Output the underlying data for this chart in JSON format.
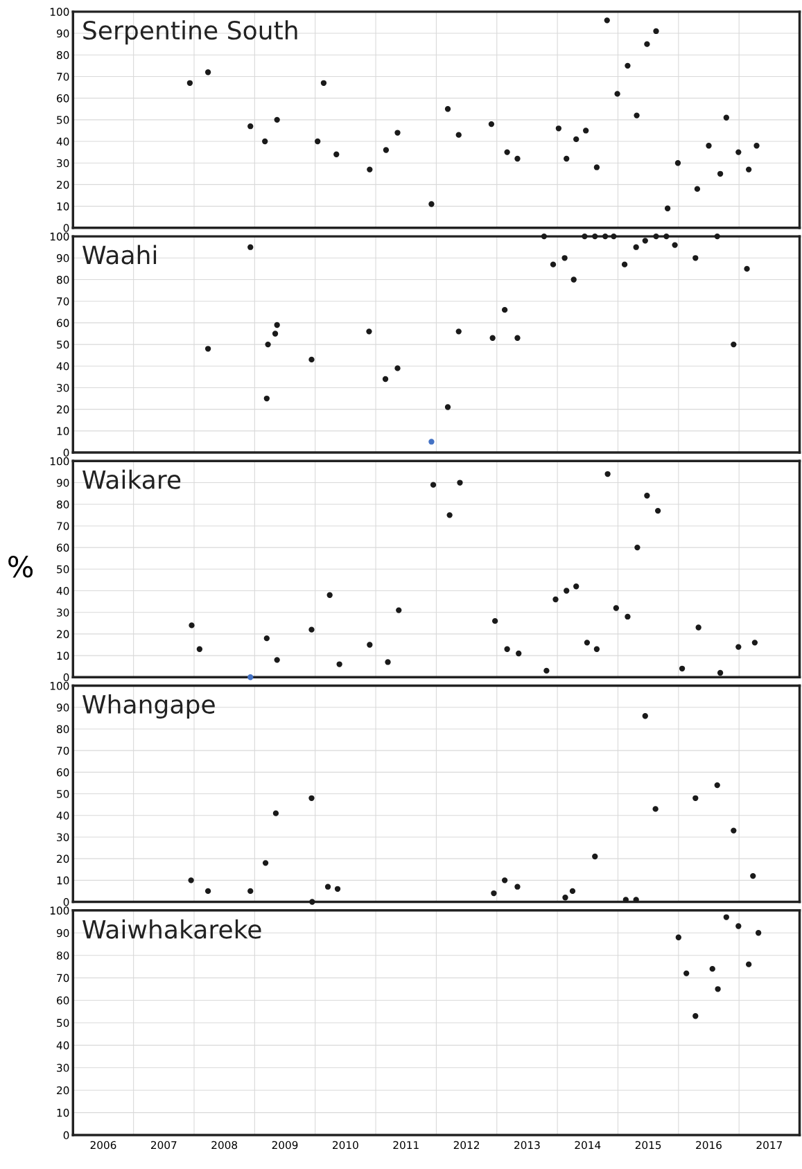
{
  "chart_data": [
    {
      "type": "scatter",
      "title": "Serpentine South",
      "marker": "circle",
      "grid": true,
      "tick_labels": "y",
      "xlim": [
        2006,
        2018
      ],
      "ylim": [
        0,
        100
      ],
      "yticks": [
        0,
        10,
        20,
        30,
        40,
        50,
        60,
        70,
        80,
        90,
        100
      ],
      "xticks": [
        {
          "value": 2007,
          "label": null
        },
        {
          "value": 2008,
          "label": null
        },
        {
          "value": 2009,
          "label": null
        },
        {
          "value": 2010,
          "label": null
        },
        {
          "value": 2011,
          "label": null
        },
        {
          "value": 2012,
          "label": null
        },
        {
          "value": 2013,
          "label": null
        },
        {
          "value": 2014,
          "label": null
        },
        {
          "value": 2015,
          "label": null
        },
        {
          "value": 2016,
          "label": null
        },
        {
          "value": 2017,
          "label": null
        }
      ],
      "x": [
        2007.93,
        2008.23,
        2008.93,
        2009.17,
        2009.37,
        2010.04,
        2010.14,
        2010.35,
        2010.9,
        2011.17,
        2011.36,
        2011.92,
        2012.19,
        2012.37,
        2012.91,
        2013.17,
        2013.34,
        2014.02,
        2014.15,
        2014.31,
        2014.47,
        2014.65,
        2014.82,
        2014.99,
        2015.16,
        2015.31,
        2015.48,
        2015.63,
        2015.82,
        2015.99,
        2016.31,
        2016.5,
        2016.69,
        2016.79,
        2016.99,
        2017.16,
        2017.29
      ],
      "values": [
        67,
        72,
        47,
        40,
        50,
        40,
        67,
        34,
        27,
        36,
        44,
        11,
        55,
        43,
        48,
        35,
        32,
        46,
        32,
        41,
        45,
        28,
        96,
        62,
        75,
        52,
        85,
        91,
        9,
        30,
        18,
        38,
        25,
        51,
        35,
        27,
        38
      ],
      "color": "#1a1a1a"
    },
    {
      "type": "scatter",
      "title": "Waahi",
      "marker": "circle",
      "grid": true,
      "tick_labels": "y",
      "xlim": [
        2006,
        2018
      ],
      "ylim": [
        0,
        100
      ],
      "yticks": [
        0,
        10,
        20,
        30,
        40,
        50,
        60,
        70,
        80,
        90,
        100
      ],
      "xticks": [
        {
          "value": 2007,
          "label": null
        },
        {
          "value": 2008,
          "label": null
        },
        {
          "value": 2009,
          "label": null
        },
        {
          "value": 2010,
          "label": null
        },
        {
          "value": 2011,
          "label": null
        },
        {
          "value": 2012,
          "label": null
        },
        {
          "value": 2013,
          "label": null
        },
        {
          "value": 2014,
          "label": null
        },
        {
          "value": 2015,
          "label": null
        },
        {
          "value": 2016,
          "label": null
        },
        {
          "value": 2017,
          "label": null
        }
      ],
      "x": [
        2008.23,
        2008.93,
        2009.2,
        2009.22,
        2009.34,
        2009.37,
        2009.94,
        2010.89,
        2011.16,
        2011.36,
        2011.92,
        2012.19,
        2012.37,
        2012.93,
        2013.13,
        2013.34,
        2013.78,
        2013.93,
        2014.12,
        2014.27,
        2014.45,
        2014.62,
        2014.79,
        2014.93,
        2015.11,
        2015.3,
        2015.45,
        2015.63,
        2015.8,
        2015.94,
        2016.28,
        2016.64,
        2016.91,
        2017.13
      ],
      "values": [
        48,
        95,
        25,
        50,
        55,
        59,
        43,
        56,
        34,
        39,
        5,
        21,
        56,
        53,
        66,
        53,
        100,
        87,
        90,
        80,
        100,
        100,
        100,
        100,
        87,
        95,
        98,
        100,
        100,
        96,
        90,
        100,
        50,
        85
      ],
      "colors": [
        "#1a1a1a",
        "#1a1a1a",
        "#1a1a1a",
        "#1a1a1a",
        "#1a1a1a",
        "#1a1a1a",
        "#1a1a1a",
        "#1a1a1a",
        "#1a1a1a",
        "#1a1a1a",
        "#4472c4",
        "#1a1a1a",
        "#1a1a1a",
        "#1a1a1a",
        "#1a1a1a",
        "#1a1a1a",
        "#1a1a1a",
        "#1a1a1a",
        "#1a1a1a",
        "#1a1a1a",
        "#1a1a1a",
        "#1a1a1a",
        "#1a1a1a",
        "#1a1a1a",
        "#1a1a1a",
        "#1a1a1a",
        "#1a1a1a",
        "#1a1a1a",
        "#1a1a1a",
        "#1a1a1a",
        "#1a1a1a",
        "#1a1a1a",
        "#1a1a1a",
        "#1a1a1a"
      ]
    },
    {
      "type": "scatter",
      "title": "Waikare",
      "ylabel": "%",
      "marker": "circle",
      "grid": true,
      "tick_labels": "y",
      "xlim": [
        2006,
        2018
      ],
      "ylim": [
        0,
        100
      ],
      "yticks": [
        0,
        10,
        20,
        30,
        40,
        50,
        60,
        70,
        80,
        90,
        100
      ],
      "xticks": [
        {
          "value": 2007,
          "label": null
        },
        {
          "value": 2008,
          "label": null
        },
        {
          "value": 2009,
          "label": null
        },
        {
          "value": 2010,
          "label": null
        },
        {
          "value": 2011,
          "label": null
        },
        {
          "value": 2012,
          "label": null
        },
        {
          "value": 2013,
          "label": null
        },
        {
          "value": 2014,
          "label": null
        },
        {
          "value": 2015,
          "label": null
        },
        {
          "value": 2016,
          "label": null
        },
        {
          "value": 2017,
          "label": null
        }
      ],
      "x": [
        2007.96,
        2008.09,
        2008.93,
        2009.2,
        2009.37,
        2009.94,
        2010.24,
        2010.4,
        2010.9,
        2011.2,
        2011.38,
        2011.95,
        2012.22,
        2012.39,
        2012.97,
        2013.17,
        2013.36,
        2013.82,
        2013.97,
        2014.15,
        2014.31,
        2014.49,
        2014.65,
        2014.83,
        2014.97,
        2015.16,
        2015.32,
        2015.48,
        2015.66,
        2016.06,
        2016.33,
        2016.69,
        2016.99,
        2017.26
      ],
      "values": [
        24,
        13,
        0,
        18,
        8,
        22,
        38,
        6,
        15,
        7,
        31,
        89,
        75,
        90,
        26,
        13,
        11,
        3,
        36,
        40,
        42,
        16,
        13,
        94,
        32,
        28,
        60,
        84,
        77,
        4,
        23,
        2,
        14,
        16
      ],
      "colors": [
        "#1a1a1a",
        "#1a1a1a",
        "#4472c4",
        "#1a1a1a",
        "#1a1a1a",
        "#1a1a1a",
        "#1a1a1a",
        "#1a1a1a",
        "#1a1a1a",
        "#1a1a1a",
        "#1a1a1a",
        "#1a1a1a",
        "#1a1a1a",
        "#1a1a1a",
        "#1a1a1a",
        "#1a1a1a",
        "#1a1a1a",
        "#1a1a1a",
        "#1a1a1a",
        "#1a1a1a",
        "#1a1a1a",
        "#1a1a1a",
        "#1a1a1a",
        "#1a1a1a",
        "#1a1a1a",
        "#1a1a1a",
        "#1a1a1a",
        "#1a1a1a",
        "#1a1a1a",
        "#1a1a1a",
        "#1a1a1a",
        "#1a1a1a",
        "#1a1a1a",
        "#1a1a1a"
      ]
    },
    {
      "type": "scatter",
      "title": "Whangape",
      "marker": "circle",
      "grid": true,
      "tick_labels": "y",
      "xlim": [
        2006,
        2018
      ],
      "ylim": [
        0,
        100
      ],
      "yticks": [
        0,
        10,
        20,
        30,
        40,
        50,
        60,
        70,
        80,
        90,
        100
      ],
      "xticks": [
        {
          "value": 2007,
          "label": null
        },
        {
          "value": 2008,
          "label": null
        },
        {
          "value": 2009,
          "label": null
        },
        {
          "value": 2010,
          "label": null
        },
        {
          "value": 2011,
          "label": null
        },
        {
          "value": 2012,
          "label": null
        },
        {
          "value": 2013,
          "label": null
        },
        {
          "value": 2014,
          "label": null
        },
        {
          "value": 2015,
          "label": null
        },
        {
          "value": 2016,
          "label": null
        },
        {
          "value": 2017,
          "label": null
        }
      ],
      "x": [
        2007.95,
        2008.23,
        2008.93,
        2009.18,
        2009.35,
        2009.94,
        2009.95,
        2010.21,
        2010.37,
        2012.95,
        2013.13,
        2013.34,
        2014.13,
        2014.25,
        2014.62,
        2015.13,
        2015.3,
        2015.45,
        2015.62,
        2016.28,
        2016.64,
        2016.91,
        2017.23
      ],
      "values": [
        10,
        5,
        5,
        18,
        41,
        48,
        0,
        7,
        6,
        4,
        10,
        7,
        2,
        5,
        21,
        1,
        1,
        86,
        43,
        48,
        54,
        33,
        12
      ],
      "color": "#1a1a1a"
    },
    {
      "type": "scatter",
      "title": "Waiwhakareke",
      "marker": "circle",
      "grid": true,
      "xlim": [
        2006,
        2018
      ],
      "ylim": [
        0,
        100
      ],
      "yticks": [
        0,
        10,
        20,
        30,
        40,
        50,
        60,
        70,
        80,
        90,
        100
      ],
      "xticks": [
        {
          "value": 2006.5,
          "label": "2006"
        },
        {
          "value": 2007,
          "label": null
        },
        {
          "value": 2007.5,
          "label": "2007"
        },
        {
          "value": 2008,
          "label": null
        },
        {
          "value": 2008.5,
          "label": "2008"
        },
        {
          "value": 2009,
          "label": null
        },
        {
          "value": 2009.5,
          "label": "2009"
        },
        {
          "value": 2010,
          "label": null
        },
        {
          "value": 2010.5,
          "label": "2010"
        },
        {
          "value": 2011,
          "label": null
        },
        {
          "value": 2011.5,
          "label": "2011"
        },
        {
          "value": 2012,
          "label": null
        },
        {
          "value": 2012.5,
          "label": "2012"
        },
        {
          "value": 2013,
          "label": null
        },
        {
          "value": 2013.5,
          "label": "2013"
        },
        {
          "value": 2014,
          "label": null
        },
        {
          "value": 2014.5,
          "label": "2014"
        },
        {
          "value": 2015,
          "label": null
        },
        {
          "value": 2015.5,
          "label": "2015"
        },
        {
          "value": 2016,
          "label": null
        },
        {
          "value": 2016.5,
          "label": "2016"
        },
        {
          "value": 2017,
          "label": null
        },
        {
          "value": 2017.5,
          "label": "2017"
        }
      ],
      "x": [
        2016.0,
        2016.13,
        2016.28,
        2016.56,
        2016.65,
        2016.79,
        2016.99,
        2017.16,
        2017.32
      ],
      "values": [
        88,
        72,
        53,
        74,
        65,
        97,
        93,
        76,
        90
      ],
      "color": "#1a1a1a"
    }
  ]
}
